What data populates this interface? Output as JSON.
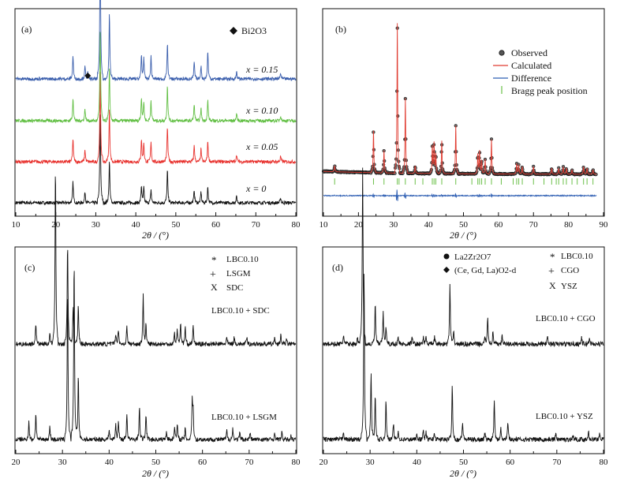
{
  "chart_data": [
    {
      "panel_label": "(a)",
      "type": "line",
      "xlabel": "2θ / (°)",
      "xlim": [
        10,
        80
      ],
      "xticks": [
        10,
        20,
        30,
        40,
        50,
        60,
        70,
        80
      ],
      "legend": {
        "marker": "diamond",
        "label": "Bi2O3"
      },
      "series": [
        {
          "name": "x = 0",
          "color": "#111111",
          "offset": 0,
          "peaks": [
            [
              24.3,
              0.22
            ],
            [
              27.3,
              0.12
            ],
            [
              31.1,
              1.0
            ],
            [
              33.4,
              0.45
            ],
            [
              41.4,
              0.18
            ],
            [
              42.0,
              0.16
            ],
            [
              43.8,
              0.14
            ],
            [
              47.9,
              0.35
            ],
            [
              54.6,
              0.14
            ],
            [
              56.3,
              0.12
            ],
            [
              58.0,
              0.17
            ],
            [
              65.2,
              0.07
            ],
            [
              76.2,
              0.05
            ]
          ]
        },
        {
          "name": "x = 0.05",
          "color": "#e8332f",
          "offset": 1,
          "peaks": [
            [
              24.3,
              0.25
            ],
            [
              27.3,
              0.13
            ],
            [
              31.1,
              1.0
            ],
            [
              33.4,
              0.55
            ],
            [
              41.4,
              0.24
            ],
            [
              42.0,
              0.2
            ],
            [
              43.8,
              0.22
            ],
            [
              47.9,
              0.38
            ],
            [
              54.6,
              0.18
            ],
            [
              56.3,
              0.14
            ],
            [
              58.0,
              0.22
            ],
            [
              65.2,
              0.08
            ],
            [
              76.2,
              0.06
            ]
          ]
        },
        {
          "name": "x = 0.10",
          "color": "#62bf44",
          "offset": 2,
          "peaks": [
            [
              24.3,
              0.25
            ],
            [
              27.3,
              0.13
            ],
            [
              31.1,
              1.0
            ],
            [
              33.4,
              0.55
            ],
            [
              41.4,
              0.25
            ],
            [
              42.0,
              0.2
            ],
            [
              43.8,
              0.22
            ],
            [
              47.9,
              0.38
            ],
            [
              54.6,
              0.18
            ],
            [
              56.3,
              0.14
            ],
            [
              58.0,
              0.22
            ],
            [
              65.2,
              0.08
            ],
            [
              76.2,
              0.06
            ]
          ]
        },
        {
          "name": "x = 0.15",
          "color": "#3b5fad",
          "offset": 3,
          "peaks": [
            [
              24.3,
              0.25
            ],
            [
              27.3,
              0.13
            ],
            [
              28.0,
              0.07
            ],
            [
              31.1,
              1.5
            ],
            [
              33.4,
              0.7
            ],
            [
              41.4,
              0.25
            ],
            [
              42.0,
              0.22
            ],
            [
              43.8,
              0.24
            ],
            [
              47.9,
              0.38
            ],
            [
              54.6,
              0.18
            ],
            [
              56.3,
              0.14
            ],
            [
              58.0,
              0.3
            ],
            [
              65.2,
              0.08
            ],
            [
              76.2,
              0.06
            ]
          ]
        }
      ],
      "markers": [
        {
          "symbol": "diamond",
          "x": 28.0,
          "series": "x = 0.15"
        }
      ]
    },
    {
      "panel_label": "(b)",
      "type": "scatter",
      "xlabel": "2θ / (°)",
      "xlim": [
        10,
        90
      ],
      "xticks": [
        10,
        20,
        30,
        40,
        50,
        60,
        70,
        80,
        90
      ],
      "legend": [
        "Observed",
        "Calculated",
        "Difference",
        "Bragg peak position"
      ],
      "colors": {
        "observed": "#222222",
        "calculated": "#e03c31",
        "difference": "#2f5fb3",
        "bragg": "#6cc04a"
      },
      "peaks": [
        [
          13.2,
          0.04
        ],
        [
          24.3,
          0.28
        ],
        [
          27.3,
          0.15
        ],
        [
          31.1,
          1.0
        ],
        [
          33.4,
          0.5
        ],
        [
          36.2,
          0.05
        ],
        [
          41.1,
          0.18
        ],
        [
          41.6,
          0.2
        ],
        [
          42.1,
          0.13
        ],
        [
          43.8,
          0.22
        ],
        [
          47.8,
          0.32
        ],
        [
          54.1,
          0.13
        ],
        [
          54.6,
          0.15
        ],
        [
          55.2,
          0.09
        ],
        [
          56.2,
          0.1
        ],
        [
          58.0,
          0.23
        ],
        [
          65.2,
          0.07
        ],
        [
          65.8,
          0.06
        ],
        [
          66.8,
          0.05
        ],
        [
          70.0,
          0.05
        ],
        [
          75.2,
          0.04
        ],
        [
          77.2,
          0.04
        ],
        [
          78.5,
          0.05
        ],
        [
          79.4,
          0.04
        ],
        [
          81.0,
          0.03
        ],
        [
          84.3,
          0.05
        ],
        [
          85.3,
          0.04
        ],
        [
          87.0,
          0.03
        ]
      ],
      "bragg_positions": [
        13.2,
        24.3,
        27.3,
        31.1,
        31.6,
        33.4,
        36.2,
        38.4,
        41.1,
        41.6,
        42.1,
        43.8,
        47.8,
        52.4,
        54.1,
        54.6,
        55.2,
        56.2,
        58.0,
        60.8,
        64.2,
        65.2,
        65.8,
        66.8,
        70.0,
        73.0,
        75.2,
        76.5,
        77.2,
        78.5,
        79.4,
        81.0,
        82.5,
        84.3,
        85.3,
        87.0
      ]
    },
    {
      "panel_label": "(c)",
      "type": "line",
      "xlabel": "2θ / (°)",
      "xlim": [
        20,
        80
      ],
      "xticks": [
        20,
        30,
        40,
        50,
        60,
        70,
        80
      ],
      "legend": [
        {
          "symbol": "*",
          "label": "LBC0.10"
        },
        {
          "symbol": "+",
          "label": "LSGM"
        },
        {
          "symbol": "X",
          "label": "SDC"
        }
      ],
      "series": [
        {
          "name": "LBC0.10 + LSGM",
          "color": "#111111",
          "offset": 1,
          "peaks": [
            [
              22.8,
              0.08
            ],
            [
              24.3,
              0.12
            ],
            [
              27.3,
              0.06
            ],
            [
              31.1,
              0.7
            ],
            [
              32.5,
              0.83
            ],
            [
              33.4,
              0.3
            ],
            [
              40.0,
              0.05
            ],
            [
              41.4,
              0.07
            ],
            [
              42.0,
              0.09
            ],
            [
              43.8,
              0.12
            ],
            [
              46.5,
              0.15
            ],
            [
              47.9,
              0.12
            ],
            [
              52.3,
              0.04
            ],
            [
              54.0,
              0.06
            ],
            [
              54.6,
              0.07
            ],
            [
              56.3,
              0.05
            ],
            [
              57.8,
              0.18
            ],
            [
              58.0,
              0.12
            ],
            [
              65.2,
              0.04
            ],
            [
              66.5,
              0.05
            ],
            [
              68.0,
              0.03
            ],
            [
              70.2,
              0.03
            ],
            [
              75.5,
              0.03
            ],
            [
              77.0,
              0.03
            ],
            [
              79.0,
              0.02
            ]
          ]
        },
        {
          "name": "LBC0.10 + SDC",
          "color": "#111111",
          "offset": 0,
          "peaks": [
            [
              24.3,
              0.1
            ],
            [
              27.3,
              0.05
            ],
            [
              28.5,
              0.83
            ],
            [
              31.1,
              0.47
            ],
            [
              32.3,
              0.18
            ],
            [
              33.4,
              0.18
            ],
            [
              41.4,
              0.05
            ],
            [
              42.0,
              0.07
            ],
            [
              43.8,
              0.08
            ],
            [
              47.3,
              0.22
            ],
            [
              47.9,
              0.09
            ],
            [
              54.0,
              0.05
            ],
            [
              54.6,
              0.07
            ],
            [
              55.3,
              0.1
            ],
            [
              56.3,
              0.08
            ],
            [
              58.0,
              0.08
            ],
            [
              65.2,
              0.03
            ],
            [
              66.8,
              0.03
            ],
            [
              69.5,
              0.03
            ],
            [
              75.5,
              0.03
            ],
            [
              76.8,
              0.04
            ],
            [
              78.0,
              0.02
            ]
          ]
        }
      ]
    },
    {
      "panel_label": "(d)",
      "type": "line",
      "xlabel": "2θ / (°)",
      "xlim": [
        20,
        80
      ],
      "xticks": [
        20,
        30,
        40,
        50,
        60,
        70,
        80
      ],
      "legend": [
        {
          "symbol": "●",
          "label": "La2Zr2O7"
        },
        {
          "symbol": "◆",
          "label": "(Ce, Gd, La)O2-d"
        },
        {
          "symbol": "*",
          "label": "LBC0.10"
        },
        {
          "symbol": "+",
          "label": "CGO"
        },
        {
          "symbol": "X",
          "label": "YSZ"
        }
      ],
      "series": [
        {
          "name": "LBC0.10 + YSZ",
          "color": "#111111",
          "offset": 1,
          "peaks": [
            [
              24.3,
              0.04
            ],
            [
              28.7,
              0.75
            ],
            [
              30.2,
              0.3
            ],
            [
              31.1,
              0.2
            ],
            [
              33.4,
              0.17
            ],
            [
              35.0,
              0.07
            ],
            [
              36.0,
              0.04
            ],
            [
              40.0,
              0.03
            ],
            [
              41.4,
              0.04
            ],
            [
              42.0,
              0.03
            ],
            [
              43.8,
              0.03
            ],
            [
              47.6,
              0.24
            ],
            [
              49.8,
              0.08
            ],
            [
              54.6,
              0.03
            ],
            [
              56.6,
              0.18
            ],
            [
              58.0,
              0.06
            ],
            [
              59.5,
              0.08
            ],
            [
              69.8,
              0.03
            ],
            [
              73.5,
              0.02
            ],
            [
              76.8,
              0.04
            ],
            [
              79.2,
              0.03
            ]
          ]
        },
        {
          "name": "LBC0.10 + CGO",
          "color": "#111111",
          "offset": 0,
          "peaks": [
            [
              24.3,
              0.04
            ],
            [
              27.3,
              0.03
            ],
            [
              28.4,
              0.78
            ],
            [
              31.1,
              0.18
            ],
            [
              32.8,
              0.14
            ],
            [
              33.4,
              0.08
            ],
            [
              36.0,
              0.03
            ],
            [
              39.0,
              0.03
            ],
            [
              41.4,
              0.03
            ],
            [
              42.0,
              0.03
            ],
            [
              43.8,
              0.03
            ],
            [
              47.1,
              0.26
            ],
            [
              47.9,
              0.05
            ],
            [
              54.6,
              0.03
            ],
            [
              55.2,
              0.12
            ],
            [
              56.3,
              0.05
            ],
            [
              58.3,
              0.04
            ],
            [
              68.0,
              0.03
            ],
            [
              75.3,
              0.03
            ],
            [
              77.0,
              0.03
            ]
          ]
        }
      ]
    }
  ]
}
